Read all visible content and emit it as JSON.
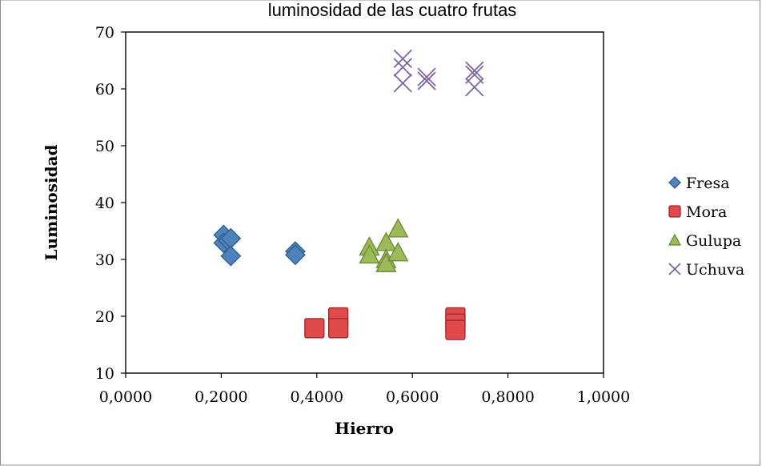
{
  "chart_data": {
    "type": "scatter",
    "title": "luminosidad de las cuatro frutas",
    "xlabel": "Hierro",
    "ylabel": "Luminosidad",
    "xlim": [
      0,
      1
    ],
    "ylim": [
      10,
      70
    ],
    "xticks": [
      "0,0000",
      "0,2000",
      "0,4000",
      "0,6000",
      "0,8000",
      "1,0000"
    ],
    "yticks": [
      "10",
      "20",
      "30",
      "40",
      "50",
      "60",
      "70"
    ],
    "grid": false,
    "legend_position": "right",
    "series": [
      {
        "name": "Fresa",
        "marker": "diamond",
        "color": "#4f81bd",
        "points": [
          [
            0.205,
            34.3
          ],
          [
            0.205,
            32.9
          ],
          [
            0.215,
            33.3
          ],
          [
            0.22,
            33.7
          ],
          [
            0.22,
            30.6
          ],
          [
            0.355,
            31.4
          ],
          [
            0.355,
            30.8
          ]
        ]
      },
      {
        "name": "Mora",
        "marker": "square",
        "color": "#e04a4a",
        "points": [
          [
            0.395,
            17.9
          ],
          [
            0.445,
            19.8
          ],
          [
            0.445,
            17.9
          ],
          [
            0.69,
            19.8
          ],
          [
            0.69,
            18.7
          ],
          [
            0.69,
            17.6
          ]
        ]
      },
      {
        "name": "Gulupa",
        "marker": "triangle",
        "color": "#9bbb59",
        "points": [
          [
            0.51,
            32.2
          ],
          [
            0.51,
            30.8
          ],
          [
            0.545,
            33.0
          ],
          [
            0.545,
            30.0
          ],
          [
            0.545,
            29.3
          ],
          [
            0.57,
            35.4
          ],
          [
            0.57,
            31.2
          ]
        ]
      },
      {
        "name": "Uchuva",
        "marker": "x",
        "color": "#8064a2",
        "points": [
          [
            0.58,
            65.3
          ],
          [
            0.58,
            63.8
          ],
          [
            0.58,
            61.0
          ],
          [
            0.63,
            62.1
          ],
          [
            0.63,
            61.4
          ],
          [
            0.73,
            63.2
          ],
          [
            0.73,
            62.5
          ],
          [
            0.73,
            60.3
          ]
        ]
      }
    ]
  }
}
